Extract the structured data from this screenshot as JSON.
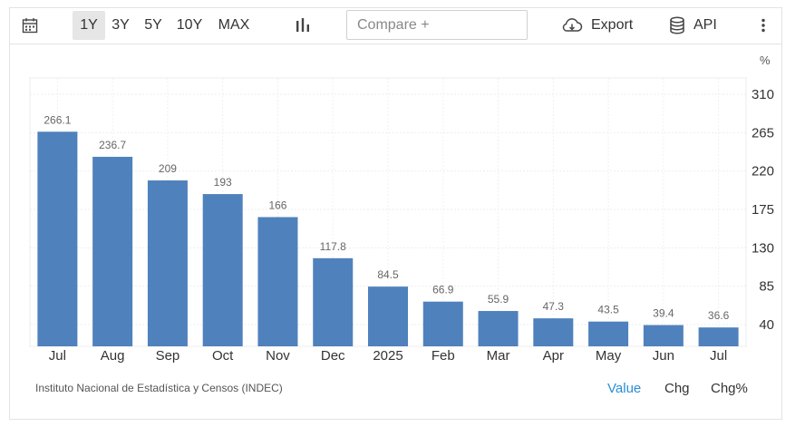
{
  "toolbar": {
    "ranges": [
      "1Y",
      "3Y",
      "5Y",
      "10Y",
      "MAX"
    ],
    "active_range": "1Y",
    "compare_placeholder": "Compare +",
    "export_label": "Export",
    "api_label": "API",
    "icons": [
      "calendar-icon",
      "bar-chart-icon",
      "cloud-download-icon",
      "database-icon",
      "more-vertical-icon"
    ]
  },
  "chart_data": {
    "type": "bar",
    "unit": "%",
    "categories": [
      "Jul",
      "Aug",
      "Sep",
      "Oct",
      "Nov",
      "Dec",
      "2025",
      "Feb",
      "Mar",
      "Apr",
      "May",
      "Jun",
      "Jul"
    ],
    "values": [
      266.1,
      236.7,
      209,
      193,
      166,
      117.8,
      84.5,
      66.9,
      55.9,
      47.3,
      43.5,
      39.4,
      36.6
    ],
    "value_labels": [
      "266.1",
      "236.7",
      "209",
      "193",
      "166",
      "117.8",
      "84.5",
      "66.9",
      "55.9",
      "47.3",
      "43.5",
      "39.4",
      "36.6"
    ],
    "y_ticks": [
      40,
      85,
      130,
      175,
      220,
      265,
      310
    ],
    "y_tick_labels": [
      "40",
      "85",
      "130",
      "175",
      "220",
      "265",
      "310"
    ],
    "ylim": [
      40,
      310
    ],
    "y_axis_side": "right",
    "grid": true,
    "bar_color": "#4f81bd"
  },
  "source": "Instituto Nacional de Estadística y Censos (INDEC)",
  "modes": {
    "value": "Value",
    "chg": "Chg",
    "chgp": "Chg%",
    "active": "Value",
    "active_color": "#2b8fd6"
  }
}
